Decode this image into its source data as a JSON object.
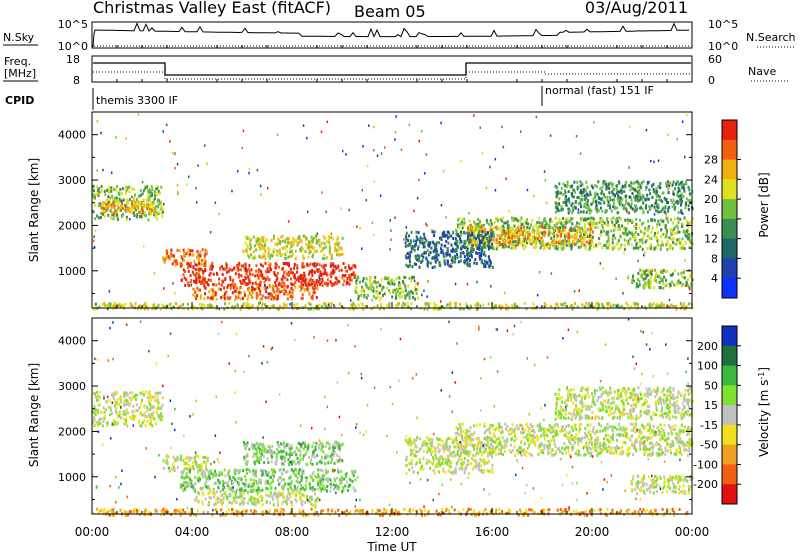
{
  "header": {
    "site": "Christmas Valley East (fitACF)",
    "beam": "Beam 05",
    "date": "03/Aug/2011"
  },
  "noise_panel": {
    "left_label": "N.Sky",
    "right_label": "N.Search",
    "left_ticks": [
      "10^5",
      "10^0"
    ],
    "right_ticks": [
      "10^5",
      "10^0"
    ]
  },
  "freq_panel": {
    "left_label_1": "Freq.",
    "left_label_2": "[MHz]",
    "right_label": "Nave",
    "left_ticks": [
      "18",
      "8"
    ],
    "right_ticks": [
      "60",
      "0"
    ]
  },
  "cpid_panel": {
    "label": "CPID",
    "modes": [
      {
        "name": "themis 3300 IF",
        "start_hour": 0
      },
      {
        "name": "normal (fast) 151 IF",
        "start_hour": 18
      }
    ]
  },
  "chart_data": [
    {
      "type": "heatmap",
      "title": "Power",
      "ylabel": "Slant Range [km]",
      "xlabel": "Time UT",
      "xlim": [
        0,
        24
      ],
      "ylim": [
        180,
        4500
      ],
      "y_ticks": [
        "1000",
        "2000",
        "3000",
        "4000"
      ],
      "x_ticks": [
        "00:00",
        "04:00",
        "08:00",
        "12:00",
        "16:00",
        "20:00",
        "00:00"
      ],
      "colorbar": {
        "label": "Power [dB]",
        "ticks": [
          "4",
          "8",
          "12",
          "16",
          "20",
          "24",
          "28"
        ],
        "colors": [
          "#1030ff",
          "#2040b0",
          "#206868",
          "#3c8c50",
          "#70c040",
          "#e0e020",
          "#f0b010",
          "#f06010",
          "#e82010"
        ]
      },
      "regions": [
        {
          "t0": 0.0,
          "t1": 2.8,
          "r0": 2150,
          "r1": 2900,
          "level": 4
        },
        {
          "t0": 0.3,
          "t1": 2.5,
          "r0": 2300,
          "r1": 2600,
          "level": 6
        },
        {
          "t0": 2.8,
          "t1": 4.6,
          "r0": 1150,
          "r1": 1500,
          "level": 7
        },
        {
          "t0": 3.5,
          "t1": 10.5,
          "r0": 700,
          "r1": 1200,
          "level": 8
        },
        {
          "t0": 4.0,
          "t1": 9.0,
          "r0": 400,
          "r1": 700,
          "level": 7
        },
        {
          "t0": 6.0,
          "t1": 10.0,
          "r0": 1300,
          "r1": 1800,
          "level": 5
        },
        {
          "t0": 10.5,
          "t1": 13.0,
          "r0": 400,
          "r1": 900,
          "level": 4
        },
        {
          "t0": 0.0,
          "t1": 24.0,
          "r0": 180,
          "r1": 320,
          "level": 5
        },
        {
          "t0": 14.5,
          "t1": 24.0,
          "r0": 1500,
          "r1": 2200,
          "level": 4
        },
        {
          "t0": 15.0,
          "t1": 20.0,
          "r0": 1600,
          "r1": 2000,
          "level": 6
        },
        {
          "t0": 18.5,
          "t1": 24.0,
          "r0": 2300,
          "r1": 3000,
          "level": 3
        },
        {
          "t0": 21.5,
          "t1": 24.0,
          "r0": 650,
          "r1": 1050,
          "level": 4
        },
        {
          "t0": 12.5,
          "t1": 16.0,
          "r0": 1100,
          "r1": 1900,
          "level": 2
        }
      ]
    },
    {
      "type": "heatmap",
      "title": "Velocity",
      "ylabel": "Slant Range [km]",
      "xlabel": "Time UT",
      "xlim": [
        0,
        24
      ],
      "ylim": [
        180,
        4500
      ],
      "y_ticks": [
        "1000",
        "2000",
        "3000",
        "4000"
      ],
      "x_ticks": [
        "00:00",
        "04:00",
        "08:00",
        "12:00",
        "16:00",
        "20:00",
        "00:00"
      ],
      "colorbar": {
        "label": "Velocity [m s-1]",
        "ticks": [
          "200",
          "100",
          "50",
          "15",
          "-15",
          "-50",
          "-100",
          "-200"
        ],
        "colors": [
          "#1030c0",
          "#1f6f3f",
          "#3cb840",
          "#80e030",
          "#c0c0c0",
          "#f0e020",
          "#f0a020",
          "#f06010",
          "#e01010"
        ]
      },
      "regions": [
        {
          "t0": 0.0,
          "t1": 2.8,
          "r0": 2150,
          "r1": 2900,
          "level": 4
        },
        {
          "t0": 2.8,
          "t1": 4.6,
          "r0": 1150,
          "r1": 1500,
          "level": 4
        },
        {
          "t0": 3.5,
          "t1": 10.5,
          "r0": 700,
          "r1": 1200,
          "level": 3
        },
        {
          "t0": 4.0,
          "t1": 9.0,
          "r0": 400,
          "r1": 700,
          "level": 4
        },
        {
          "t0": 6.0,
          "t1": 10.0,
          "r0": 1300,
          "r1": 1800,
          "level": 3
        },
        {
          "t0": 0.0,
          "t1": 24.0,
          "r0": 180,
          "r1": 320,
          "level": 6
        },
        {
          "t0": 14.5,
          "t1": 24.0,
          "r0": 1500,
          "r1": 2200,
          "level": 4
        },
        {
          "t0": 18.5,
          "t1": 24.0,
          "r0": 2300,
          "r1": 3000,
          "level": 4
        },
        {
          "t0": 21.5,
          "t1": 24.0,
          "r0": 650,
          "r1": 1050,
          "level": 4
        },
        {
          "t0": 12.5,
          "t1": 16.0,
          "r0": 1100,
          "r1": 1900,
          "level": 4
        }
      ]
    }
  ]
}
